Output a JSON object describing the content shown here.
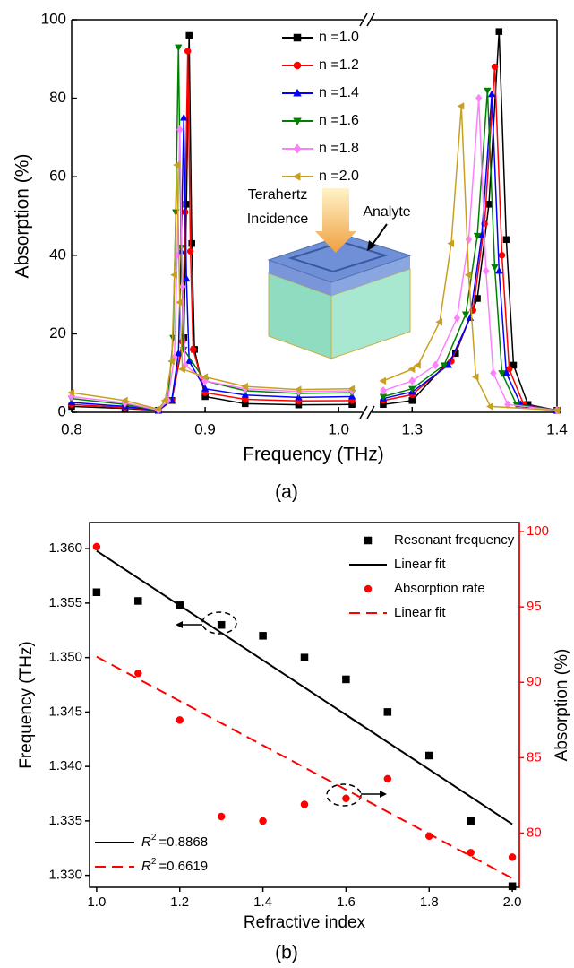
{
  "chart_data": [
    {
      "type": "line",
      "panel_label": "(a)",
      "x_label": "Frequency (THz)",
      "y_label": "Absorption (%)",
      "ylim": [
        0,
        100
      ],
      "yticks": [
        0,
        20,
        40,
        60,
        80,
        100
      ],
      "x_segments": [
        {
          "xlim": [
            0.8,
            1.018
          ]
        },
        {
          "xlim": [
            1.272,
            1.4
          ]
        }
      ],
      "xticks": [
        0.8,
        0.9,
        {
          "value": 1.0,
          "label": "1.0"
        },
        1.3,
        1.4
      ],
      "legend": "top-center",
      "series": [
        {
          "name": "n =1.0",
          "color": "#000000",
          "marker": "square",
          "x": [
            0.8,
            0.84,
            0.865,
            0.875,
            0.884,
            0.886,
            0.888,
            0.89,
            0.892,
            0.9,
            0.93,
            0.97,
            1.01,
            1.28,
            1.3,
            1.33,
            1.345,
            1.353,
            1.36,
            1.365,
            1.37,
            1.38,
            1.4
          ],
          "values": [
            1.5,
            1,
            0.5,
            3,
            19,
            53,
            96,
            43,
            16,
            4,
            2.2,
            1.9,
            2,
            2,
            3,
            15,
            29,
            53,
            97,
            44,
            12,
            2,
            0.5
          ]
        },
        {
          "name": "n =1.2",
          "color": "#ff0000",
          "marker": "circle",
          "x": [
            0.8,
            0.84,
            0.865,
            0.875,
            0.883,
            0.885,
            0.887,
            0.889,
            0.891,
            0.9,
            0.93,
            0.97,
            1.01,
            1.28,
            1.3,
            1.327,
            1.342,
            1.35,
            1.357,
            1.362,
            1.367,
            1.377,
            1.4
          ],
          "values": [
            2,
            1.2,
            0.5,
            3,
            18,
            51,
            92,
            41,
            16,
            5,
            3.3,
            2.9,
            3,
            3,
            4.5,
            13,
            26,
            48,
            88,
            40,
            11,
            2,
            0.5
          ]
        },
        {
          "name": "n =1.4",
          "color": "#0000ff",
          "marker": "triangle-up",
          "x": [
            0.8,
            0.84,
            0.865,
            0.875,
            0.88,
            0.882,
            0.884,
            0.886,
            0.888,
            0.9,
            0.93,
            0.97,
            1.01,
            1.28,
            1.3,
            1.325,
            1.34,
            1.348,
            1.355,
            1.36,
            1.365,
            1.375,
            1.4
          ],
          "values": [
            2.5,
            1.5,
            0.5,
            3,
            15,
            41,
            75,
            34,
            13,
            6,
            4.4,
            3.8,
            4,
            3.5,
            5.2,
            12,
            24,
            45,
            81,
            36,
            10,
            2,
            0.5
          ]
        },
        {
          "name": "n =1.6",
          "color": "#008000",
          "marker": "triangle-down",
          "x": [
            0.8,
            0.84,
            0.865,
            0.872,
            0.876,
            0.878,
            0.88,
            0.882,
            0.884,
            0.9,
            0.93,
            0.97,
            1.01,
            1.28,
            1.3,
            1.322,
            1.337,
            1.345,
            1.352,
            1.357,
            1.362,
            1.372,
            1.4
          ],
          "values": [
            3.5,
            2,
            0.5,
            3,
            19,
            51,
            93,
            42,
            16,
            8,
            5.5,
            4.8,
            5,
            4,
            6,
            12,
            25,
            45,
            82,
            37,
            10,
            2,
            0.5
          ]
        },
        {
          "name": "n =1.8",
          "color": "#ff80ff",
          "marker": "diamond",
          "x": [
            0.8,
            0.84,
            0.865,
            0.872,
            0.877,
            0.879,
            0.881,
            0.883,
            0.885,
            0.9,
            0.93,
            0.97,
            1.01,
            1.28,
            1.3,
            1.316,
            1.331,
            1.339,
            1.346,
            1.351,
            1.356,
            1.366,
            1.4
          ],
          "values": [
            4,
            2.4,
            0.6,
            3,
            14,
            40,
            72,
            32,
            12,
            8,
            6,
            5.3,
            5.5,
            5.5,
            8,
            12,
            24,
            44,
            80,
            36,
            10,
            2,
            0.5
          ]
        },
        {
          "name": "n =2.0",
          "color": "#c8a020",
          "marker": "triangle-left",
          "x": [
            0.8,
            0.84,
            0.865,
            0.87,
            0.875,
            0.877,
            0.879,
            0.881,
            0.883,
            0.9,
            0.93,
            0.97,
            1.01,
            1.28,
            1.3,
            1.304,
            1.319,
            1.327,
            1.334,
            1.339,
            1.344,
            1.354,
            1.4
          ],
          "values": [
            5,
            3,
            0.8,
            3,
            13,
            35,
            63,
            28,
            11,
            9,
            6.6,
            5.8,
            6,
            8,
            11,
            12,
            23,
            43,
            78,
            35,
            9,
            1.5,
            0.5
          ]
        }
      ],
      "inset": {
        "labels": [
          "Terahertz",
          "Incidence",
          "Analyte"
        ]
      }
    },
    {
      "type": "scatter",
      "panel_label": "(b)",
      "x_label": "Refractive index",
      "y_label": "Frequency (THz)",
      "y2_label": "Absorption (%)",
      "xlim": [
        0.983,
        2.017
      ],
      "xticks": [
        {
          "value": 1.0,
          "label": "1.0"
        },
        1.2,
        1.4,
        1.6,
        1.8,
        {
          "value": 2.0,
          "label": "2.0"
        }
      ],
      "ylim": [
        1.3289,
        1.3624
      ],
      "yticks": [
        {
          "value": 1.33,
          "label": "1.330"
        },
        1.335,
        {
          "value": 1.34,
          "label": "1.340"
        },
        1.345,
        {
          "value": 1.35,
          "label": "1.350"
        },
        1.355,
        {
          "value": 1.36,
          "label": "1.360"
        }
      ],
      "y2lim": [
        76.4,
        100.6
      ],
      "y2ticks": [
        80,
        85,
        90,
        95,
        100
      ],
      "y2color": "#ff0000",
      "legend": "top-right",
      "series": [
        {
          "name": "Resonant frequency",
          "kind": "points",
          "marker": "square",
          "color": "#000000",
          "x": [
            1.0,
            1.1,
            1.2,
            1.3,
            1.4,
            1.5,
            1.6,
            1.7,
            1.8,
            1.9,
            2.0
          ],
          "values": [
            1.356,
            1.3552,
            1.3548,
            1.353,
            1.352,
            1.35,
            1.348,
            1.345,
            1.341,
            1.335,
            1.329
          ]
        },
        {
          "name": "Linear fit",
          "kind": "line",
          "color": "#000000",
          "x": [
            1.0,
            2.0
          ],
          "values": [
            1.3598,
            1.3347
          ]
        },
        {
          "name": "Absorption rate",
          "kind": "points",
          "marker": "circle",
          "color": "#ff0000",
          "axis": "y2",
          "x": [
            1.0,
            1.1,
            1.2,
            1.3,
            1.4,
            1.5,
            1.6,
            1.7,
            1.8,
            1.9,
            2.0
          ],
          "values": [
            99,
            90.6,
            87.5,
            81.1,
            80.8,
            81.9,
            82.3,
            83.6,
            79.8,
            78.7,
            78.4
          ]
        },
        {
          "name": "Linear fit",
          "kind": "line",
          "dash": true,
          "color": "#ff0000",
          "axis": "y2",
          "x": [
            1.0,
            2.0
          ],
          "values": [
            91.7,
            77
          ]
        }
      ],
      "fit_stats": [
        {
          "symbol": "R",
          "exponent": "2",
          "text": "=0.8868",
          "color": "#000000",
          "dash": false
        },
        {
          "symbol": "R",
          "exponent": "2",
          "text": "=0.6619",
          "color": "#ff0000",
          "dash": true
        }
      ]
    }
  ]
}
